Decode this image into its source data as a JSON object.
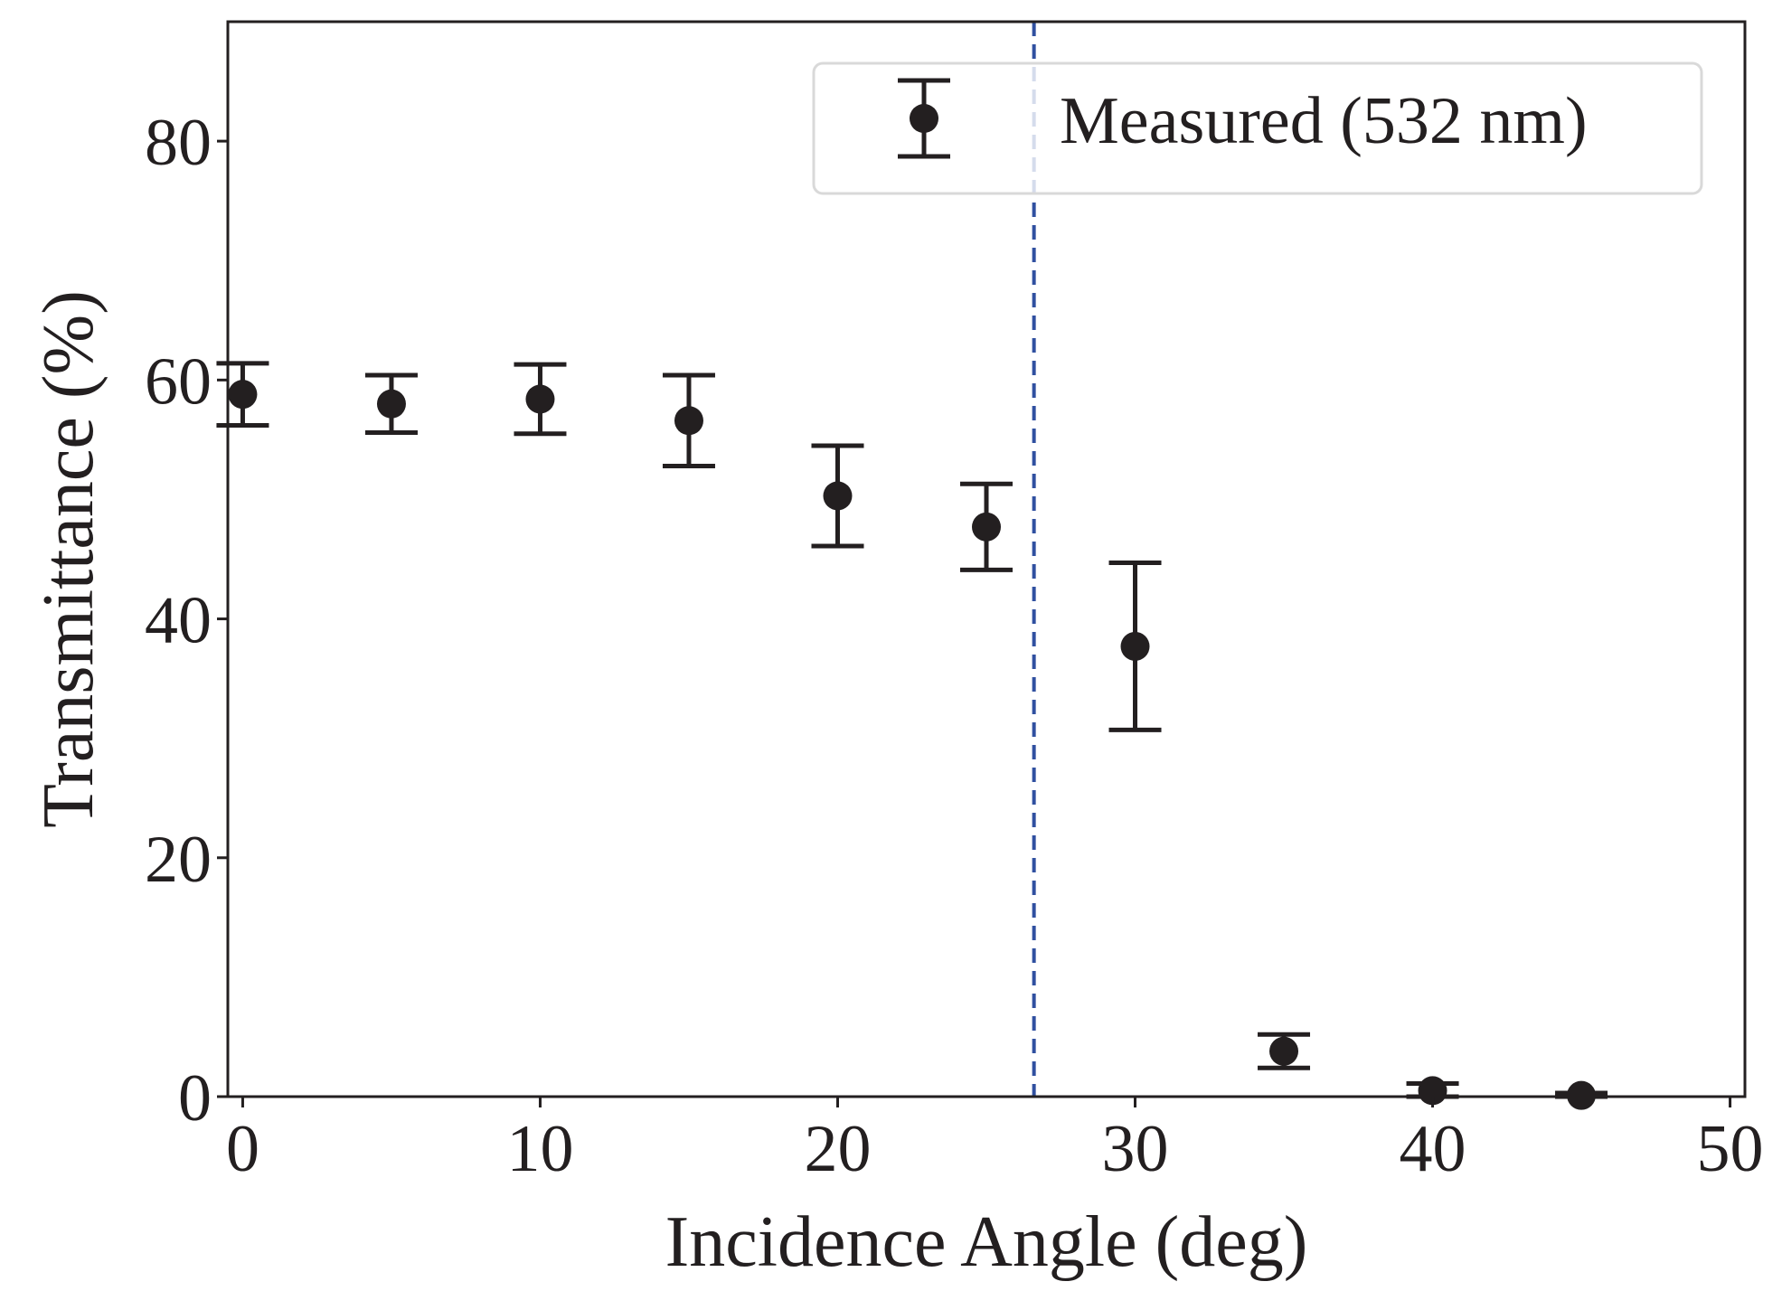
{
  "chart_data": {
    "type": "scatter",
    "xlabel": "Incidence Angle (deg)",
    "ylabel": "Transmittance (%)",
    "xlim": [
      -0.5,
      50.5
    ],
    "ylim": [
      0,
      90
    ],
    "xticks": [
      0,
      10,
      20,
      30,
      40,
      50
    ],
    "yticks": [
      0,
      20,
      40,
      60,
      80
    ],
    "grid": false,
    "legend_position": "top-right",
    "series": [
      {
        "name": "Measured (532 nm)",
        "color": "#231f20",
        "marker": "circle",
        "points": [
          {
            "x": 0,
            "y": 58.8,
            "err": 2.6
          },
          {
            "x": 5,
            "y": 58.0,
            "err": 2.4
          },
          {
            "x": 10,
            "y": 58.4,
            "err": 2.9
          },
          {
            "x": 15,
            "y": 56.6,
            "err": 3.8
          },
          {
            "x": 20,
            "y": 50.3,
            "err": 4.2
          },
          {
            "x": 25,
            "y": 47.7,
            "err": 3.6
          },
          {
            "x": 30,
            "y": 37.7,
            "err": 7.0
          },
          {
            "x": 35,
            "y": 3.8,
            "err": 1.4
          },
          {
            "x": 40,
            "y": 0.5,
            "err": 0.6
          },
          {
            "x": 45,
            "y": 0.1,
            "err": 0.2
          }
        ]
      }
    ],
    "reference_lines": [
      {
        "orientation": "vertical",
        "x": 26.6,
        "style": "dashed",
        "color": "#3050a0"
      }
    ]
  }
}
